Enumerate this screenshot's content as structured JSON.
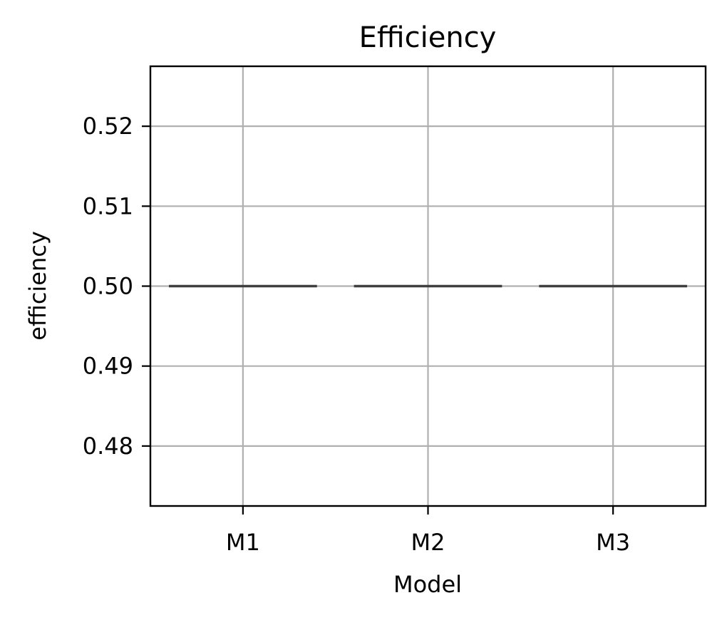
{
  "chart_data": {
    "type": "box",
    "title": "Efficiency",
    "xlabel": "Model",
    "ylabel": "efficiency",
    "categories": [
      "M1",
      "M2",
      "M3"
    ],
    "values": [
      0.5,
      0.5,
      0.5
    ],
    "ylim": [
      0.4725,
      0.5275
    ],
    "yticks": [
      0.48,
      0.49,
      0.5,
      0.51,
      0.52
    ],
    "ytick_labels": [
      "0.48",
      "0.49",
      "0.50",
      "0.51",
      "0.52"
    ],
    "grid": true,
    "box_color": "#3f3f3f"
  }
}
